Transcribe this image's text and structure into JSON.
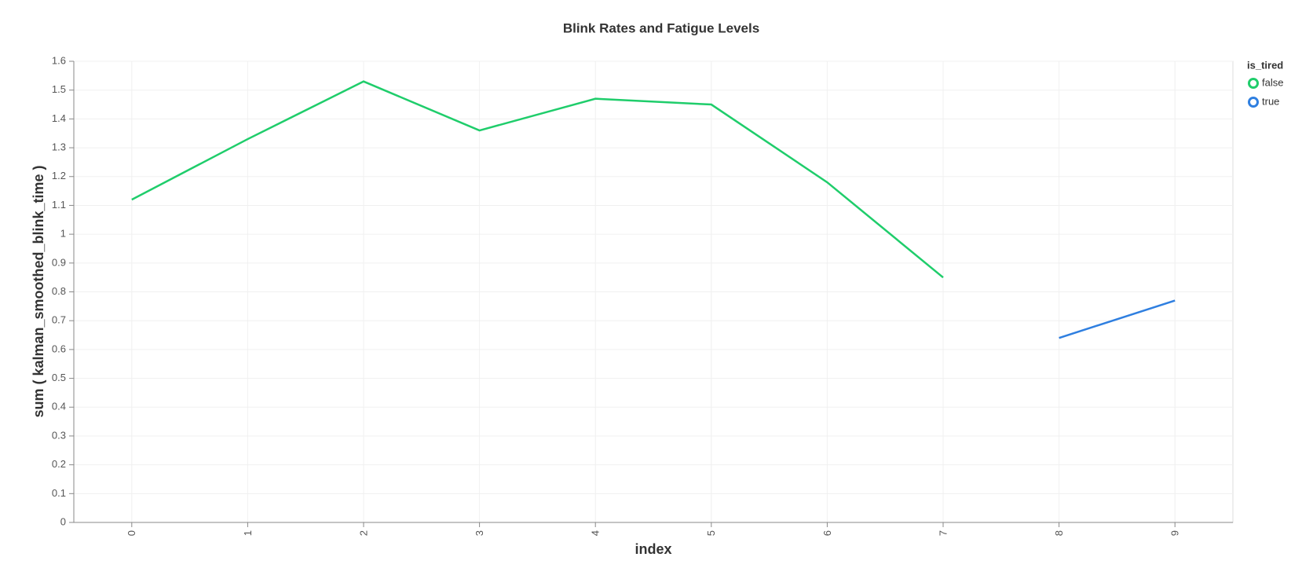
{
  "chart_data": {
    "type": "line",
    "title": "Blink Rates and Fatigue Levels",
    "x_label": "index",
    "y_label": "sum ( kalman_smoothed_blink_time )",
    "x": [
      0,
      1,
      2,
      3,
      4,
      5,
      6,
      7,
      8,
      9
    ],
    "xlim": [
      -0.5,
      9.5
    ],
    "xticks": [
      0,
      1,
      2,
      3,
      4,
      5,
      6,
      7,
      8,
      9
    ],
    "ylim": [
      0,
      1.6
    ],
    "yticks": [
      0,
      0.1,
      0.2,
      0.3,
      0.4,
      0.5,
      0.6,
      0.7,
      0.8,
      0.9,
      1,
      1.1,
      1.2,
      1.3,
      1.4,
      1.5,
      1.6
    ],
    "grid": true,
    "legend_title": "is_tired",
    "legend_position": "right",
    "series": [
      {
        "name": "false",
        "color": "#1fcd6b",
        "values": [
          1.12,
          1.33,
          1.53,
          1.36,
          1.47,
          1.45,
          1.18,
          0.85,
          null,
          null
        ]
      },
      {
        "name": "true",
        "color": "#2f7fe0",
        "values": [
          null,
          null,
          null,
          null,
          null,
          null,
          null,
          null,
          0.64,
          0.77
        ]
      }
    ]
  }
}
